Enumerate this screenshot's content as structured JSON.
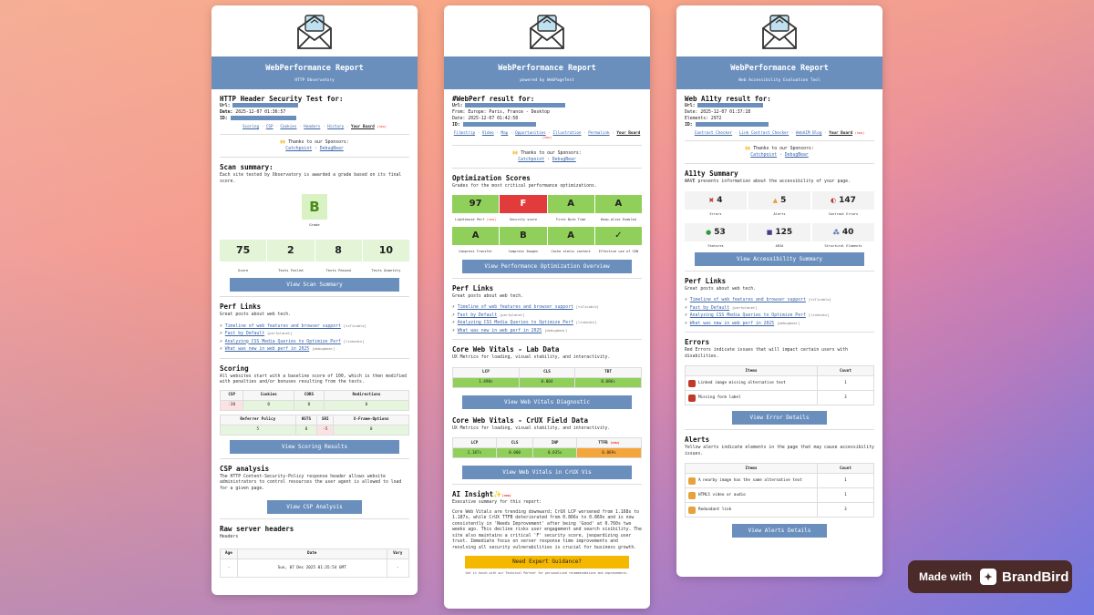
{
  "common": {
    "title": "WebPerformance Report",
    "sponsors_title": "🙌 Thanks to our Sponsors:",
    "sponsor1": "Catchpoint",
    "sponsor_sep": " · ",
    "sponsor2": "DebugBear",
    "perf_links_title": "Perf Links",
    "perf_links_sub": "Great posts about web tech.",
    "perf_links": [
      {
        "label": "Timeline of web features and browser support",
        "src": "[tsTicable]"
      },
      {
        "label": "Fast by Default",
        "src": "[perfplanet]"
      },
      {
        "label": "Analyzing CSS Media Queries to Optimize Perf",
        "src": "[linkedin]"
      },
      {
        "label": "What was new in web perf in 2025",
        "src": "[debugbear]"
      }
    ],
    "new_tag": "(new)"
  },
  "card1": {
    "subtitle": "HTTP Observatory",
    "heading": "HTTP Header Security Test for:",
    "url_label": "Url:",
    "date_label": "Date:",
    "date": "2025-12-07 01:36:57",
    "id_label": "ID:",
    "links": [
      "Scoring",
      "CSP",
      "Cookies",
      "Headers",
      "History"
    ],
    "board": "Your Board",
    "scan_title": "Scan summary:",
    "scan_text": "Each site tested by Observatory is awarded a grade based on its final score.",
    "grade": "B",
    "grade_label": "Grade",
    "stats": [
      {
        "v": "75",
        "l": "Score"
      },
      {
        "v": "2",
        "l": "Tests Failed"
      },
      {
        "v": "8",
        "l": "Tests Passed"
      },
      {
        "v": "10",
        "l": "Tests Quantity"
      }
    ],
    "btn_scan": "View Scan Summary",
    "scoring_title": "Scoring",
    "scoring_text": "All websites start with a baseline score of 100, which is then modified with penalties and/or bonuses resulting from the tests.",
    "t1_heads": [
      "CSP",
      "Cookies",
      "CORS",
      "Redirections"
    ],
    "t1_vals": [
      "-20",
      "0",
      "0",
      "0"
    ],
    "t2_heads": [
      "Referrer Policy",
      "HSTS",
      "SRI",
      "X-Frame-Options"
    ],
    "t2_vals": [
      "5",
      "0",
      "-5",
      "0"
    ],
    "btn_scoring": "View Scoring Results",
    "csp_title": "CSP analysis",
    "csp_text": "The HTTP Content-Security-Policy response header allows website administrators to control resources the user agent is allowed to load for a given page.",
    "btn_csp": "View CSP Analysis",
    "raw_title": "Raw server headers",
    "raw_sub": "Headers",
    "raw_heads": [
      "Age",
      "Date",
      "Vary"
    ],
    "raw_vals": [
      "-",
      "Sun, 07 Dec 2025 01:35:54 GMT",
      "-"
    ]
  },
  "card2": {
    "subtitle": "powered by WebPageTest",
    "heading": "#WebPerf result for:",
    "url_label": "Url:",
    "from": "From: Europe: Paris, France - Desktop",
    "date": "Date: 2025-12-07 01:42:58",
    "id_label": "ID:",
    "links": [
      "Filmstrip",
      "Video",
      "Map",
      "Opportunities",
      "Illustration",
      "Permalink"
    ],
    "board": "Your Board",
    "opt_title": "Optimization Scores",
    "opt_sub": "Grades for the most critical performance optimizations.",
    "opt": [
      {
        "v": "97",
        "l": "Lighthouse Perf",
        "c": "g",
        "n": true
      },
      {
        "v": "F",
        "l": "Security score",
        "c": "r",
        "n": false
      },
      {
        "v": "A",
        "l": "First Byte Time",
        "c": "g",
        "n": false
      },
      {
        "v": "A",
        "l": "Keep-alive Enabled",
        "c": "g",
        "n": false
      },
      {
        "v": "A",
        "l": "Compress Transfer",
        "c": "g",
        "n": false
      },
      {
        "v": "B",
        "l": "Compress Images",
        "c": "g",
        "n": false
      },
      {
        "v": "A",
        "l": "Cache static content",
        "c": "g",
        "n": false
      },
      {
        "v": "✓",
        "l": "Effective use of CDN",
        "c": "g",
        "n": false
      }
    ],
    "btn_opt": "View Performance Optimization Overview",
    "lab_title": "Core Web Vitals - Lab Data",
    "lab_sub": "UX Metrics for loading, visual stability, and interactivity.",
    "lab_heads": [
      "LCP",
      "CLS",
      "TBT"
    ],
    "lab_vals": [
      "1.490s",
      "0.004",
      "0.086s"
    ],
    "btn_lab": "View Web Vitals Diagnostic",
    "crux_title": "Core Web Vitals - CrUX Field Data",
    "crux_sub": "UX Metrics for loading, visual stability, and interactivity.",
    "crux_heads": [
      "LCP",
      "CLS",
      "INP",
      "TTFB"
    ],
    "crux_vals": [
      "1.187s",
      "0.000",
      "0.035s",
      "0.869s"
    ],
    "btn_crux": "View Web Vitals in CrUX Vis",
    "ai_title": "AI Insight✨",
    "ai_sub": "Executive summary for this report:",
    "ai_text": "Core Web Vitals are trending downward; CrUX LCP worsened from 1.168s to 1.187s, while CrUX TTFB deteriorated from 0.866s to 0.869s and is now consistently in 'Needs Improvement' after being 'Good' at 0.760s two weeks ago. This decline risks user engagement and search visibility. The site also maintains a critical 'F' security score, jeopardizing user trust. Immediate focus on server response time improvements and resolving all security vulnerabilities is crucial for business growth.",
    "btn_expert": "Need Expert Guidance?",
    "tiny": "Get in touch with our Technical Partner for personalized recommendations and improvements."
  },
  "card3": {
    "subtitle": "Web Accessibility Evaluation Tool",
    "heading": "Web A11ty result for:",
    "url_label": "Url:",
    "date": "Date: 2025-12-07 01:37:18",
    "elements": "Elements: 2972",
    "id_label": "ID:",
    "links": [
      "Contrast Checker",
      "Link Contrast Checker",
      "WebAIM Blog"
    ],
    "board": "Your Board",
    "sum_title": "A11ty Summary",
    "sum_sub": "WAVE presents information about the accessibility of your page.",
    "wave": [
      {
        "v": "4",
        "l": "Errors",
        "i": "✖",
        "c": "#c0392b"
      },
      {
        "v": "5",
        "l": "Alerts",
        "i": "▲",
        "c": "#e6a23c"
      },
      {
        "v": "147",
        "l": "Contrast Errors",
        "i": "◐",
        "c": "#c0392b"
      },
      {
        "v": "53",
        "l": "Features",
        "i": "●",
        "c": "#2e9c3d"
      },
      {
        "v": "125",
        "l": "ARIA",
        "i": "■",
        "c": "#4b3a8c"
      },
      {
        "v": "40",
        "l": "Structural Elements",
        "i": "⁂",
        "c": "#3a64a8"
      }
    ],
    "btn_sum": "View Accessibility Summary",
    "err_title": "Errors",
    "err_sub": "Red Errors indicate issues that will impact certain users with disabilities.",
    "err_heads": [
      "Items",
      "Count"
    ],
    "errors": [
      {
        "item": "Linked image missing alternative text",
        "count": "1"
      },
      {
        "item": "Missing form label",
        "count": "3"
      }
    ],
    "btn_err": "View Error Details",
    "alert_title": "Alerts",
    "alert_sub": "Yellow alerts indicate elements in the page that may cause accessibility issues.",
    "alerts": [
      {
        "item": "A nearby image has the same alternative text",
        "count": "1"
      },
      {
        "item": "HTML5 video or audio",
        "count": "1"
      },
      {
        "item": "Redundant link",
        "count": "3"
      }
    ],
    "btn_alert": "View Alerts Details"
  },
  "badge": {
    "made": "Made with",
    "brand": "BrandBird"
  }
}
